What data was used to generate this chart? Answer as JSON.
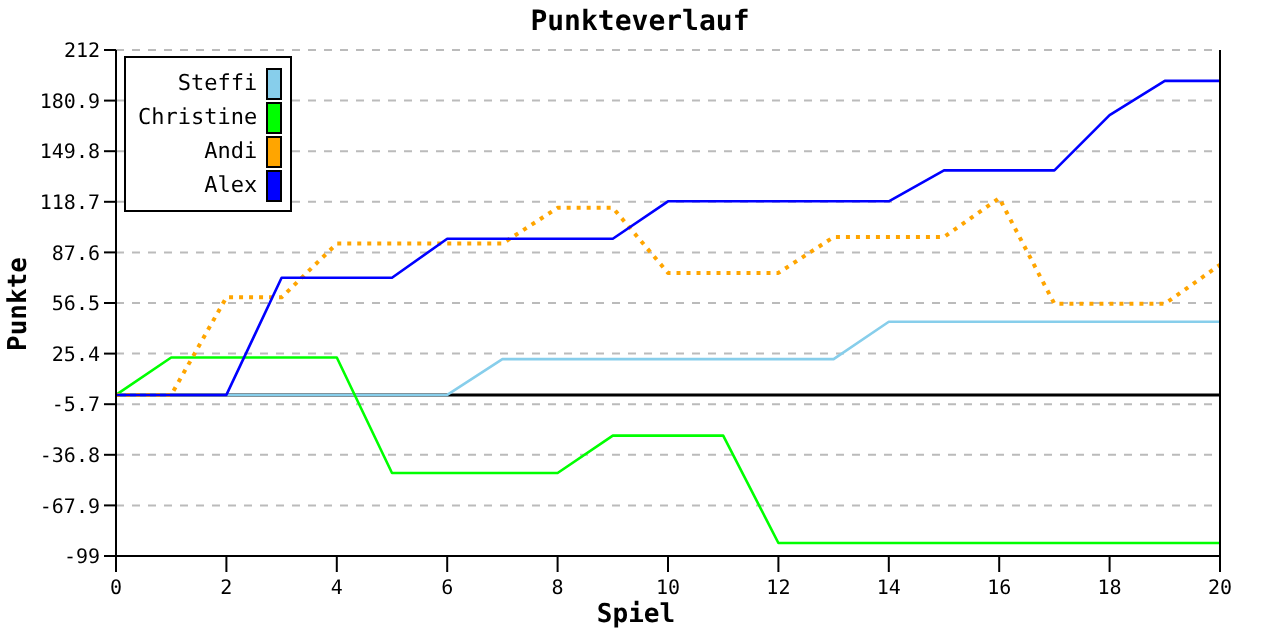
{
  "chart_data": {
    "type": "line",
    "title": "Punkteverlauf",
    "xlabel": "Spiel",
    "ylabel": "Punkte",
    "x": [
      0,
      1,
      2,
      3,
      4,
      5,
      6,
      7,
      8,
      9,
      10,
      11,
      12,
      13,
      14,
      15,
      16,
      17,
      18,
      19,
      20
    ],
    "series": [
      {
        "name": "Steffi",
        "color": "#87ceeb",
        "values": [
          0,
          0,
          0,
          0,
          0,
          0,
          0,
          22,
          22,
          22,
          22,
          22,
          22,
          22,
          45,
          45,
          45,
          45,
          45,
          45,
          45
        ]
      },
      {
        "name": "Christine",
        "color": "#00ff00",
        "values": [
          0,
          23,
          23,
          23,
          23,
          -48,
          -48,
          -48,
          -48,
          -25,
          -25,
          -25,
          -91,
          -91,
          -91,
          -91,
          -91,
          -91,
          -91,
          -91,
          -91
        ]
      },
      {
        "name": "Andi",
        "color": "#ffa500",
        "line_style": "dotted",
        "values": [
          0,
          0,
          60,
          60,
          93,
          93,
          93,
          93,
          115,
          115,
          75,
          75,
          75,
          97,
          97,
          97,
          121,
          56,
          56,
          56,
          80
        ]
      },
      {
        "name": "Alex",
        "color": "#0000ff",
        "values": [
          0,
          0,
          0,
          72,
          72,
          72,
          96,
          96,
          96,
          96,
          119,
          119,
          119,
          119,
          119,
          138,
          138,
          138,
          172,
          193,
          193
        ]
      }
    ],
    "xlim": [
      0,
      20
    ],
    "xticks": [
      0,
      2,
      4,
      6,
      8,
      10,
      12,
      14,
      16,
      18,
      20
    ],
    "ylim": [
      -99,
      212
    ],
    "yticks": [
      -99,
      -67.9,
      -36.8,
      -5.7,
      25.4,
      56.5,
      87.6,
      118.7,
      149.8,
      180.9,
      212
    ],
    "ref_lines": [
      {
        "axis": "y",
        "value": 0,
        "color": "#000000"
      }
    ],
    "grid": "y",
    "legend": "top left",
    "marker": "none",
    "line_style": "solid"
  }
}
